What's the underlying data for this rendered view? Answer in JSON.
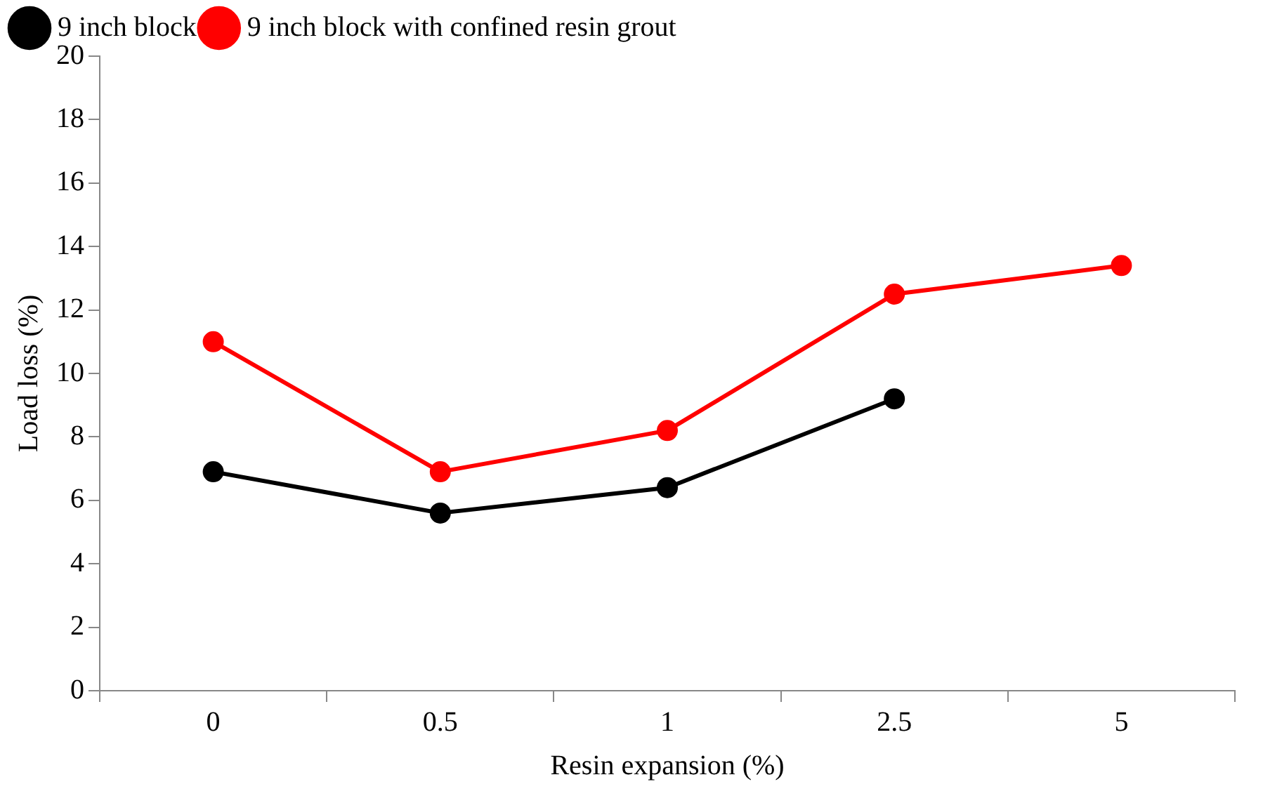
{
  "chart_data": {
    "type": "line",
    "xlabel": "Resin expansion (%)",
    "ylabel": "Load loss (%)",
    "categories": [
      "0",
      "0.5",
      "1",
      "2.5",
      "5"
    ],
    "series": [
      {
        "name": "9 inch block",
        "color": "#000000",
        "values": [
          6.9,
          5.6,
          6.4,
          9.2,
          null
        ]
      },
      {
        "name": "9 inch block with confined resin grout",
        "color": "#ff0000",
        "values": [
          11.0,
          6.9,
          8.2,
          12.5,
          13.4
        ]
      }
    ],
    "ylim": [
      0,
      20
    ],
    "yticks": [
      0,
      2,
      4,
      6,
      8,
      10,
      12,
      14,
      16,
      18,
      20
    ],
    "grid": false,
    "legend": "top",
    "marker": "circle",
    "line_style": "solid"
  }
}
